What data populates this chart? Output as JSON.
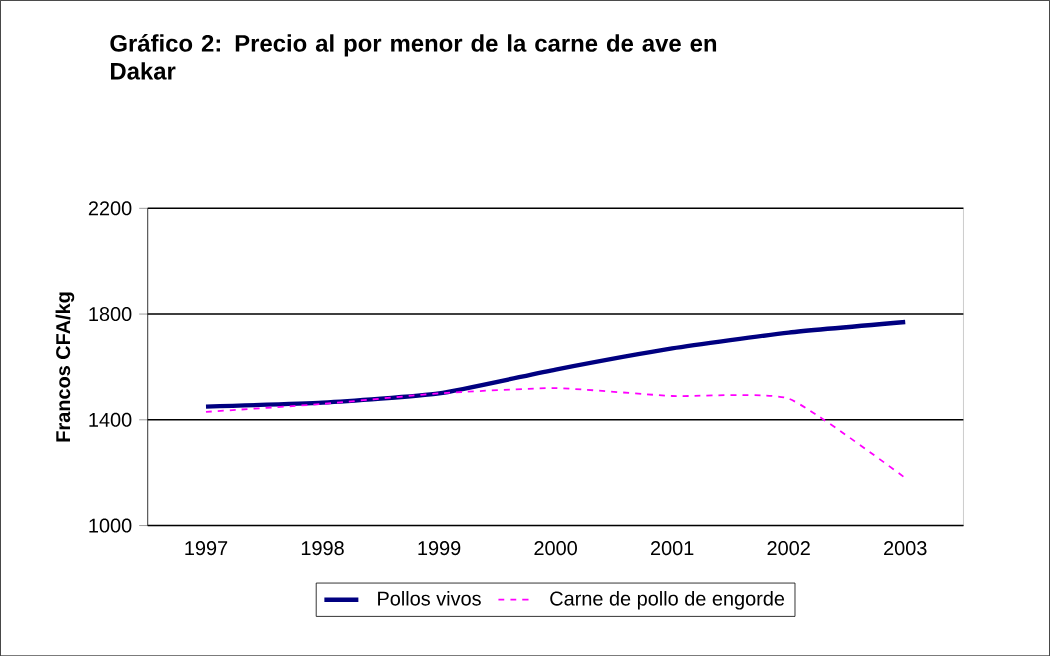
{
  "chart_data": {
    "type": "line",
    "title": "Gráfico 2: Precio al por menor de la carne de ave en Dakar",
    "ylabel": "Francos CFA/kg",
    "categories": [
      "1997",
      "1998",
      "1999",
      "2000",
      "2001",
      "2002",
      "2003"
    ],
    "series": [
      {
        "name": "Pollos vivos",
        "color": "#000080",
        "values": [
          1450,
          1465,
          1500,
          1590,
          1670,
          1730,
          1770
        ]
      },
      {
        "name": "Carne de pollo de engorde",
        "color": "#ff00ff",
        "line_style": "dashed",
        "values": [
          1430,
          1460,
          1500,
          1520,
          1490,
          1480,
          1180
        ]
      }
    ],
    "ylim": [
      1000,
      2200
    ],
    "yticks": [
      1000,
      1400,
      1800,
      2200
    ],
    "grid": "y",
    "legend": "bottom",
    "marker": "none"
  }
}
